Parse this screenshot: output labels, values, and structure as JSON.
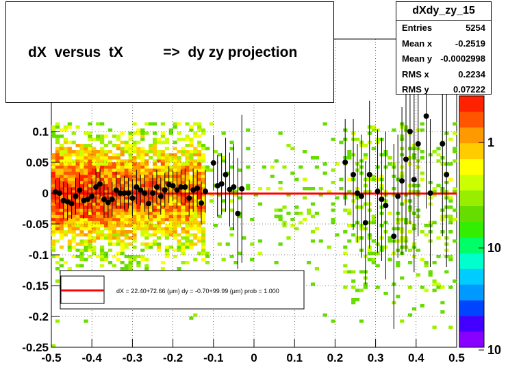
{
  "title": {
    "text": "dX  versus  tX          =>  dy zy projection"
  },
  "stats": {
    "name": "dXdy_zy_15",
    "rows": [
      {
        "key": "Entries",
        "value": "5254"
      },
      {
        "key": "Mean x",
        "value": "-0.2519"
      },
      {
        "key": "Mean y",
        "value": "-0.0002998"
      },
      {
        "key": "RMS x",
        "value": "0.2234"
      },
      {
        "key": "RMS y",
        "value": "0.07222"
      }
    ]
  },
  "colors": {
    "points": "#000000",
    "fit_line": "#ff0000",
    "palette": [
      "#8800ff",
      "#4400ff",
      "#0044ff",
      "#0099ff",
      "#00ccff",
      "#00ffcc",
      "#00ff66",
      "#33ee00",
      "#66dd00",
      "#99ee00",
      "#ccff00",
      "#ffff00",
      "#ffcc00",
      "#ff9900",
      "#ff5500",
      "#ff2200"
    ]
  },
  "chart_data": {
    "type": "scatter",
    "title": "",
    "xlabel": "",
    "ylabel": "",
    "xlim": [
      -0.5,
      0.5
    ],
    "ylim": [
      -0.25,
      0.25
    ],
    "grid": true,
    "x_ticks": [
      "-0.5",
      "-0.4",
      "-0.3",
      "-0.2",
      "-0.1",
      "0",
      "0.1",
      "0.2",
      "0.3",
      "0.4",
      "0.5"
    ],
    "y_ticks": [
      "-0.25",
      "-0.2",
      "-0.15",
      "-0.1",
      "-0.05",
      "0",
      "0.05",
      "0.1"
    ],
    "color_scale": {
      "scale": "log",
      "labels": [
        "1",
        "10",
        "10"
      ]
    },
    "fit_legend": "dX =   22.40+72.66 (μm) dy =   -0.70+99.99 (μm) prob = 1.000",
    "fit_line": {
      "x": [
        -0.5,
        0.5
      ],
      "y": [
        -0.0007,
        -0.0007
      ]
    },
    "profile": [
      {
        "x": -0.49,
        "y": 0.002,
        "err": 0.02
      },
      {
        "x": -0.48,
        "y": 0.0,
        "err": 0.025
      },
      {
        "x": -0.47,
        "y": -0.012,
        "err": 0.03
      },
      {
        "x": -0.46,
        "y": -0.014,
        "err": 0.03
      },
      {
        "x": -0.45,
        "y": -0.017,
        "err": 0.025
      },
      {
        "x": -0.44,
        "y": -0.005,
        "err": 0.03
      },
      {
        "x": -0.43,
        "y": 0.005,
        "err": 0.028
      },
      {
        "x": -0.42,
        "y": -0.012,
        "err": 0.03
      },
      {
        "x": -0.41,
        "y": -0.01,
        "err": 0.025
      },
      {
        "x": -0.4,
        "y": -0.005,
        "err": 0.028
      },
      {
        "x": -0.39,
        "y": 0.01,
        "err": 0.03
      },
      {
        "x": -0.38,
        "y": 0.015,
        "err": 0.025
      },
      {
        "x": -0.37,
        "y": -0.01,
        "err": 0.03
      },
      {
        "x": -0.36,
        "y": -0.015,
        "err": 0.025
      },
      {
        "x": -0.35,
        "y": -0.01,
        "err": 0.028
      },
      {
        "x": -0.34,
        "y": 0.005,
        "err": 0.03
      },
      {
        "x": -0.33,
        "y": 0.0,
        "err": 0.025
      },
      {
        "x": -0.32,
        "y": 0.0,
        "err": 0.028
      },
      {
        "x": -0.31,
        "y": 0.0,
        "err": 0.025
      },
      {
        "x": -0.3,
        "y": -0.008,
        "err": 0.03
      },
      {
        "x": -0.29,
        "y": 0.01,
        "err": 0.028
      },
      {
        "x": -0.28,
        "y": 0.005,
        "err": 0.025
      },
      {
        "x": -0.27,
        "y": 0.0,
        "err": 0.03
      },
      {
        "x": -0.26,
        "y": -0.017,
        "err": 0.025
      },
      {
        "x": -0.25,
        "y": 0.0,
        "err": 0.03
      },
      {
        "x": -0.24,
        "y": 0.01,
        "err": 0.028
      },
      {
        "x": -0.23,
        "y": -0.005,
        "err": 0.03
      },
      {
        "x": -0.22,
        "y": 0.005,
        "err": 0.028
      },
      {
        "x": -0.21,
        "y": 0.014,
        "err": 0.03
      },
      {
        "x": -0.2,
        "y": 0.012,
        "err": 0.025
      },
      {
        "x": -0.19,
        "y": 0.005,
        "err": 0.03
      },
      {
        "x": -0.18,
        "y": 0.01,
        "err": 0.028
      },
      {
        "x": -0.17,
        "y": 0.01,
        "err": 0.03
      },
      {
        "x": -0.16,
        "y": -0.008,
        "err": 0.03
      },
      {
        "x": -0.15,
        "y": 0.005,
        "err": 0.035
      },
      {
        "x": -0.14,
        "y": 0.008,
        "err": 0.03
      },
      {
        "x": -0.13,
        "y": -0.016,
        "err": 0.035
      },
      {
        "x": -0.12,
        "y": 0.003,
        "err": 0.035
      },
      {
        "x": -0.1,
        "y": 0.049,
        "err": 0.045
      },
      {
        "x": -0.09,
        "y": 0.012,
        "err": 0.05
      },
      {
        "x": -0.08,
        "y": 0.015,
        "err": 0.05
      },
      {
        "x": -0.07,
        "y": 0.03,
        "err": 0.06
      },
      {
        "x": -0.06,
        "y": 0.006,
        "err": 0.06
      },
      {
        "x": -0.05,
        "y": 0.01,
        "err": 0.07
      },
      {
        "x": -0.04,
        "y": -0.033,
        "err": 0.09
      },
      {
        "x": -0.03,
        "y": 0.007,
        "err": 0.12
      },
      {
        "x": 0.225,
        "y": 0.05,
        "err": 0.07
      },
      {
        "x": 0.245,
        "y": 0.03,
        "err": 0.09
      },
      {
        "x": 0.255,
        "y": 0.0,
        "err": 0.08
      },
      {
        "x": 0.265,
        "y": -0.005,
        "err": 0.1
      },
      {
        "x": 0.275,
        "y": -0.048,
        "err": 0.1
      },
      {
        "x": 0.285,
        "y": 0.03,
        "err": 0.12
      },
      {
        "x": 0.305,
        "y": 0.003,
        "err": 0.1
      },
      {
        "x": 0.315,
        "y": -0.01,
        "err": 0.1
      },
      {
        "x": 0.325,
        "y": -0.02,
        "err": 0.12
      },
      {
        "x": 0.345,
        "y": -0.07,
        "err": 0.15
      },
      {
        "x": 0.355,
        "y": -0.005,
        "err": 0.1
      },
      {
        "x": 0.365,
        "y": 0.02,
        "err": 0.12
      },
      {
        "x": 0.375,
        "y": 0.055,
        "err": 0.15
      },
      {
        "x": 0.385,
        "y": 0.1,
        "err": 0.15
      },
      {
        "x": 0.395,
        "y": 0.022,
        "err": 0.15
      },
      {
        "x": 0.405,
        "y": 0.08,
        "err": 0.15
      },
      {
        "x": 0.425,
        "y": 0.125,
        "err": 0.15
      },
      {
        "x": 0.435,
        "y": 0.0,
        "err": 0.12
      },
      {
        "x": 0.465,
        "y": 0.08,
        "err": 0.15
      },
      {
        "x": 0.475,
        "y": 0.03,
        "err": 0.15
      }
    ]
  }
}
